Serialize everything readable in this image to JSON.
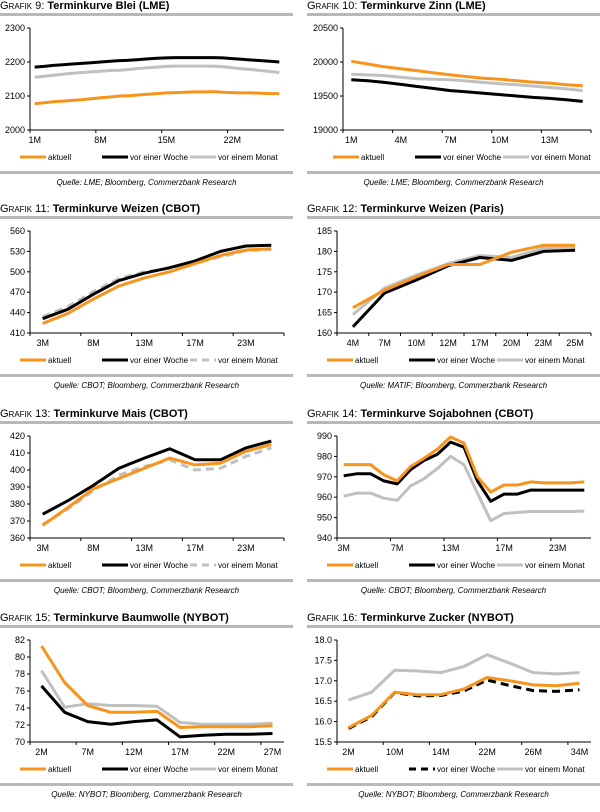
{
  "series_styles": {
    "aktuell": {
      "color": "#f7941d"
    },
    "woche": {
      "color": "#000000"
    },
    "monat": {
      "color": "#c0c0c0"
    }
  },
  "chart_data": [
    {
      "id": "g9",
      "type": "line",
      "prefix": "Grafik 9:",
      "title": "Terminkurve Blei (LME)",
      "source": "Quelle: LME; Bloomberg, Commerzbank Research",
      "ylim": [
        2000,
        2300
      ],
      "yticks": [
        2000,
        2100,
        2200,
        2300
      ],
      "x_labels": [
        "1M",
        "8M",
        "15M",
        "22M"
      ],
      "x_label_idx": [
        0,
        7,
        14,
        21
      ],
      "n": 27,
      "series": [
        {
          "name": "aktuell",
          "style": "aktuell",
          "dash": false,
          "values": [
            2077,
            2080,
            2083,
            2085,
            2087,
            2089,
            2092,
            2095,
            2097,
            2100,
            2101,
            2103,
            2105,
            2107,
            2109,
            2110,
            2111,
            2112,
            2112,
            2113,
            2111,
            2110,
            2109,
            2109,
            2108,
            2107,
            2107
          ]
        },
        {
          "name": "vor einer Woche",
          "style": "woche",
          "dash": false,
          "values": [
            2185,
            2187,
            2190,
            2192,
            2194,
            2196,
            2198,
            2200,
            2202,
            2204,
            2205,
            2207,
            2209,
            2211,
            2212,
            2213,
            2213,
            2213,
            2213,
            2213,
            2212,
            2210,
            2208,
            2206,
            2204,
            2202,
            2200
          ]
        },
        {
          "name": "vor einem Monat",
          "style": "monat",
          "dash": false,
          "values": [
            2155,
            2158,
            2161,
            2164,
            2167,
            2169,
            2171,
            2173,
            2175,
            2176,
            2178,
            2181,
            2183,
            2185,
            2187,
            2188,
            2188,
            2188,
            2188,
            2188,
            2186,
            2183,
            2180,
            2178,
            2175,
            2172,
            2169
          ]
        }
      ]
    },
    {
      "id": "g10",
      "type": "line",
      "prefix": "Grafik 10:",
      "title": "Terminkurve Zinn (LME)",
      "source": "Quelle: LME; Bloomberg, Commerzbank Research",
      "ylim": [
        19000,
        20500
      ],
      "yticks": [
        19000,
        19500,
        20000,
        20500
      ],
      "x_labels": [
        "1M",
        "4M",
        "7M",
        "10M",
        "13M"
      ],
      "x_label_idx": [
        0,
        3,
        6,
        9,
        12
      ],
      "n": 15,
      "series": [
        {
          "name": "aktuell",
          "style": "aktuell",
          "dash": false,
          "values": [
            20010,
            19970,
            19930,
            19900,
            19870,
            19840,
            19810,
            19785,
            19760,
            19745,
            19725,
            19705,
            19690,
            19665,
            19650
          ]
        },
        {
          "name": "vor einer Woche",
          "style": "woche",
          "dash": false,
          "values": [
            19740,
            19725,
            19700,
            19670,
            19640,
            19610,
            19580,
            19560,
            19540,
            19520,
            19500,
            19480,
            19465,
            19445,
            19420
          ]
        },
        {
          "name": "vor einem Monat",
          "style": "monat",
          "dash": false,
          "values": [
            19820,
            19810,
            19800,
            19775,
            19755,
            19745,
            19740,
            19720,
            19700,
            19680,
            19665,
            19645,
            19625,
            19605,
            19580
          ]
        }
      ]
    },
    {
      "id": "g11",
      "type": "line",
      "prefix": "Grafik 11:",
      "title": "Terminkurve Weizen (CBOT)",
      "source": "Quelle: CBOT; Bloomberg, Commerzbank Research",
      "ylim": [
        410,
        560
      ],
      "yticks": [
        410,
        440,
        470,
        500,
        530,
        560
      ],
      "x_labels": [
        "3M",
        "8M",
        "13M",
        "17M",
        "23M"
      ],
      "x_label_idx": [
        0,
        2,
        4,
        6,
        8
      ],
      "n": 10,
      "series": [
        {
          "name": "aktuell",
          "style": "aktuell",
          "dash": false,
          "values": [
            424,
            439,
            460,
            479,
            491,
            500,
            512,
            524,
            532,
            534
          ]
        },
        {
          "name": "vor einer Woche",
          "style": "woche",
          "dash": false,
          "values": [
            431,
            445,
            467,
            487,
            498,
            506,
            516,
            530,
            538,
            539
          ]
        },
        {
          "name": "vor einem Monat",
          "style": "monat",
          "dash": true,
          "values": [
            434,
            449,
            471,
            490,
            500,
            505,
            513,
            522,
            531,
            533
          ]
        }
      ]
    },
    {
      "id": "g12",
      "type": "line",
      "prefix": "Grafik 12:",
      "title": "Terminkurve Weizen (Paris)",
      "source": "Quelle: MATIF; Bloomberg, Commerzbank Research",
      "ylim": [
        160,
        185
      ],
      "yticks": [
        160,
        165,
        170,
        175,
        180,
        185
      ],
      "x_labels": [
        "4M",
        "7M",
        "10M",
        "12M",
        "17M",
        "20M",
        "23M",
        "25M"
      ],
      "x_label_idx": [
        0,
        1,
        2,
        3,
        4,
        5,
        6,
        7
      ],
      "n": 8,
      "series": [
        {
          "name": "aktuell",
          "style": "aktuell",
          "dash": false,
          "values": [
            166.2,
            170.5,
            173.8,
            176.8,
            176.8,
            179.8,
            181.5,
            181.5
          ]
        },
        {
          "name": "vor einer Woche",
          "style": "woche",
          "dash": false,
          "values": [
            161.5,
            169.8,
            173.0,
            176.5,
            178.5,
            177.8,
            180.0,
            180.3
          ]
        },
        {
          "name": "vor einem Monat",
          "style": "monat",
          "dash": false,
          "values": [
            164.5,
            171.0,
            174.2,
            177.0,
            179.0,
            178.5,
            180.8,
            181.0
          ]
        }
      ]
    },
    {
      "id": "g13",
      "type": "line",
      "prefix": "Grafik 13:",
      "title": "Terminkurve Mais (CBOT)",
      "source": "Quelle: CBOT; Bloomberg, Commerzbank Research",
      "ylim": [
        360,
        420
      ],
      "yticks": [
        360,
        370,
        380,
        390,
        400,
        410,
        420
      ],
      "x_labels": [
        "3M",
        "8M",
        "13M",
        "17M",
        "23M"
      ],
      "x_label_idx": [
        0,
        2,
        4,
        6,
        8
      ],
      "n": 10,
      "series": [
        {
          "name": "aktuell",
          "style": "aktuell",
          "dash": false,
          "values": [
            367.5,
            378,
            389,
            395,
            401,
            407,
            403,
            404,
            411,
            415
          ]
        },
        {
          "name": "vor einer Woche",
          "style": "woche",
          "dash": false,
          "values": [
            374,
            382,
            391,
            401,
            407,
            412.5,
            406,
            406,
            413,
            417
          ]
        },
        {
          "name": "vor einem Monat",
          "style": "monat",
          "dash": true,
          "values": [
            368,
            377,
            388,
            397,
            402,
            406,
            400,
            401,
            408,
            413
          ]
        }
      ]
    },
    {
      "id": "g14",
      "type": "line",
      "prefix": "Grafik 14:",
      "title": "Terminkurve Sojabohnen (CBOT)",
      "source": "Quelle: CBOT; Bloomberg, Commerzbank Research",
      "ylim": [
        940,
        990
      ],
      "yticks": [
        940,
        950,
        960,
        970,
        980,
        990
      ],
      "x_labels": [
        "3M",
        "7M",
        "13M",
        "17M",
        "23M"
      ],
      "x_label_idx": [
        0,
        4,
        8,
        12,
        16
      ],
      "n": 19,
      "series": [
        {
          "name": "aktuell",
          "style": "aktuell",
          "dash": false,
          "values": [
            976,
            976,
            976,
            971,
            968,
            975,
            979,
            983.5,
            989.5,
            986.5,
            970,
            962.5,
            966,
            966,
            967.5,
            967,
            967,
            967,
            967.5
          ]
        },
        {
          "name": "vor einer Woche",
          "style": "woche",
          "dash": false,
          "values": [
            970.5,
            971.5,
            971.5,
            968,
            966.5,
            973.5,
            978,
            981,
            987,
            984.5,
            968,
            958,
            961.5,
            961.5,
            963.5,
            963.5,
            963.5,
            963.5,
            963.5
          ]
        },
        {
          "name": "vor einem Monat",
          "style": "monat",
          "dash": false,
          "values": [
            960.5,
            962,
            962,
            959.5,
            958.5,
            965.5,
            969,
            974,
            980,
            976,
            962,
            948.5,
            952,
            952.5,
            953,
            953,
            953,
            953,
            953.2
          ]
        }
      ]
    },
    {
      "id": "g15",
      "type": "line",
      "prefix": "Grafik 15:",
      "title": "Terminkurve Baumwolle (NYBOT)",
      "source": "Quelle: NYBOT; Bloomberg, Commerzbank Research",
      "ylim": [
        70,
        82
      ],
      "yticks": [
        70,
        72,
        74,
        76,
        78,
        80,
        82
      ],
      "x_labels": [
        "2M",
        "7M",
        "12M",
        "17M",
        "22M",
        "27M"
      ],
      "x_label_idx": [
        0,
        2,
        4,
        6,
        8,
        10
      ],
      "n": 11,
      "series": [
        {
          "name": "aktuell",
          "style": "aktuell",
          "dash": false,
          "values": [
            81.3,
            77.0,
            74.3,
            73.5,
            73.5,
            73.6,
            71.7,
            71.8,
            71.8,
            71.8,
            71.9
          ]
        },
        {
          "name": "vor einer Woche",
          "style": "woche",
          "dash": false,
          "values": [
            76.6,
            73.5,
            72.4,
            72.1,
            72.4,
            72.6,
            70.6,
            70.8,
            70.9,
            70.9,
            71.0
          ]
        },
        {
          "name": "vor einem Monat",
          "style": "monat",
          "dash": false,
          "values": [
            78.4,
            74.1,
            74.5,
            74.3,
            74.3,
            74.2,
            72.3,
            72.1,
            72.1,
            72.1,
            72.2
          ]
        }
      ]
    },
    {
      "id": "g16",
      "type": "line",
      "prefix": "Grafik 16:",
      "title": "Terminkurve Zucker (NYBOT)",
      "source": "Quelle: NYBOT; Bloomberg, Commerzbank Research",
      "ylim": [
        15.5,
        18.0
      ],
      "yticks": [
        15.5,
        16.0,
        16.5,
        17.0,
        17.5,
        18.0
      ],
      "ydecimals": 1,
      "x_labels": [
        "2M",
        "10M",
        "14M",
        "22M",
        "26M",
        "34M"
      ],
      "x_label_idx": [
        0,
        2,
        4,
        6,
        8,
        10
      ],
      "n": 11,
      "series": [
        {
          "name": "aktuell",
          "style": "aktuell",
          "dash": false,
          "values": [
            15.85,
            16.15,
            16.72,
            16.66,
            16.66,
            16.8,
            17.08,
            17.0,
            16.9,
            16.88,
            16.94
          ]
        },
        {
          "name": "vor einer Woche",
          "style": "woche",
          "dash": true,
          "values": [
            15.83,
            16.12,
            16.71,
            16.63,
            16.64,
            16.75,
            17.02,
            16.88,
            16.76,
            16.74,
            16.78
          ]
        },
        {
          "name": "vor einem Monat",
          "style": "monat",
          "dash": false,
          "values": [
            16.53,
            16.72,
            17.26,
            17.24,
            17.2,
            17.35,
            17.64,
            17.43,
            17.2,
            17.17,
            17.2
          ]
        }
      ]
    }
  ],
  "legend_labels": [
    "aktuell",
    "vor einer Woche",
    "vor einem Monat"
  ]
}
